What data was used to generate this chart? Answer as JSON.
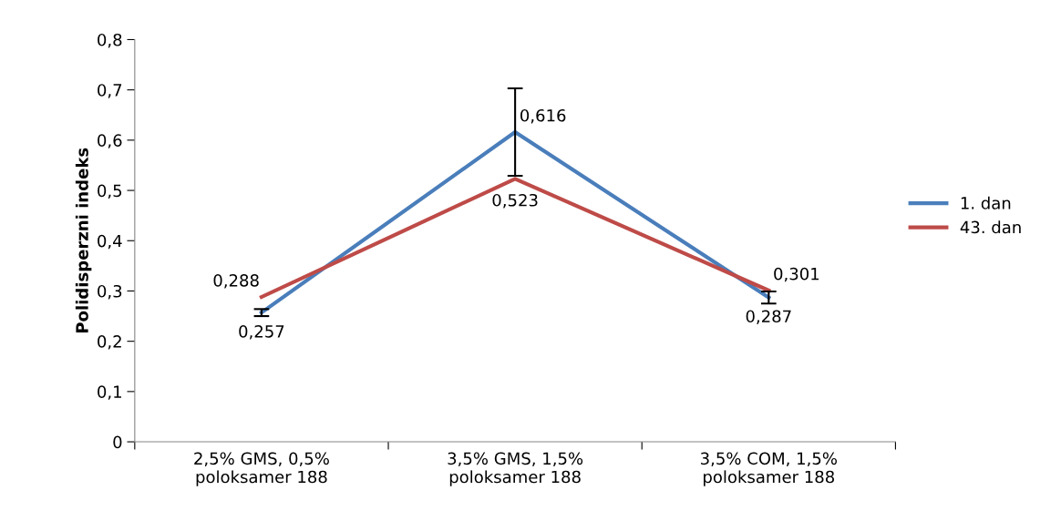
{
  "chart_data": {
    "type": "line",
    "ylabel": "Polidisperzni indeks",
    "categories": [
      "2,5% GMS, 0,5%\npoloksamer 188",
      "3,5% GMS, 1,5%\npoloksamer 188",
      "3,5% COM, 1,5%\npoloksamer 188"
    ],
    "series": [
      {
        "name": "1. dan",
        "color": "#4a7ebb",
        "values": [
          0.257,
          0.616,
          0.287
        ],
        "errors": [
          0.007,
          0.087,
          0.012
        ],
        "value_labels": [
          "0,257",
          "0,616",
          "0,287"
        ]
      },
      {
        "name": "43. dan",
        "color": "#be4b48",
        "values": [
          0.288,
          0.523,
          0.301
        ],
        "value_labels": [
          "0,288",
          "0,523",
          "0,301"
        ]
      }
    ],
    "ylim": [
      0,
      0.8
    ],
    "yticks": [
      {
        "value": 0,
        "label": "0"
      },
      {
        "value": 0.1,
        "label": "0,1"
      },
      {
        "value": 0.2,
        "label": "0,2"
      },
      {
        "value": 0.3,
        "label": "0,3"
      },
      {
        "value": 0.4,
        "label": "0,4"
      },
      {
        "value": 0.5,
        "label": "0,5"
      },
      {
        "value": 0.6,
        "label": "0,6"
      },
      {
        "value": 0.7,
        "label": "0,7"
      },
      {
        "value": 0.8,
        "label": "0,8"
      }
    ],
    "grid": false,
    "legend": "right",
    "marker": "none",
    "line_style": "solid"
  }
}
